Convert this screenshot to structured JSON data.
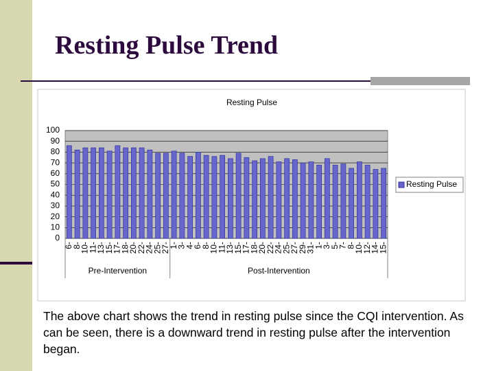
{
  "slide_title": "Resting Pulse Trend",
  "body_text": "The above chart shows the trend in resting pulse since the CQI intervention.  As can be seen, there is a downward trend in resting pulse after the intervention began.",
  "chart_data": {
    "type": "bar",
    "title": "Resting Pulse",
    "categories": [
      "6-",
      "8-",
      "10-",
      "11-",
      "13-",
      "15-",
      "17-",
      "18-",
      "20-",
      "22-",
      "24-",
      "25-",
      "27-",
      "1-",
      "3-",
      "4-",
      "6-",
      "8-",
      "10-",
      "11-",
      "13-",
      "15-",
      "17-",
      "18-",
      "20-",
      "22-",
      "24-",
      "25-",
      "27-",
      "29-",
      "31-",
      "1-",
      "3-",
      "5-",
      "7-",
      "8-",
      "10-",
      "12-",
      "14-",
      "15-"
    ],
    "groups": [
      {
        "label": "Pre-Intervention",
        "size": 13
      },
      {
        "label": "Post-Intervention",
        "size": 27
      }
    ],
    "series": [
      {
        "name": "Resting Pulse",
        "color": "#6666cc",
        "values": [
          86,
          82,
          84,
          84,
          84,
          81,
          86,
          84,
          84,
          84,
          82,
          79,
          79,
          81,
          79,
          76,
          80,
          77,
          76,
          77,
          74,
          79,
          75,
          72,
          74,
          76,
          71,
          74,
          73,
          70,
          71,
          68,
          74,
          68,
          69,
          65,
          71,
          68,
          64,
          65
        ]
      }
    ],
    "ylim": [
      0,
      100
    ],
    "yticks": [
      0,
      10,
      20,
      30,
      40,
      50,
      60,
      70,
      80,
      90,
      100
    ],
    "grid": true,
    "legend": "right"
  }
}
